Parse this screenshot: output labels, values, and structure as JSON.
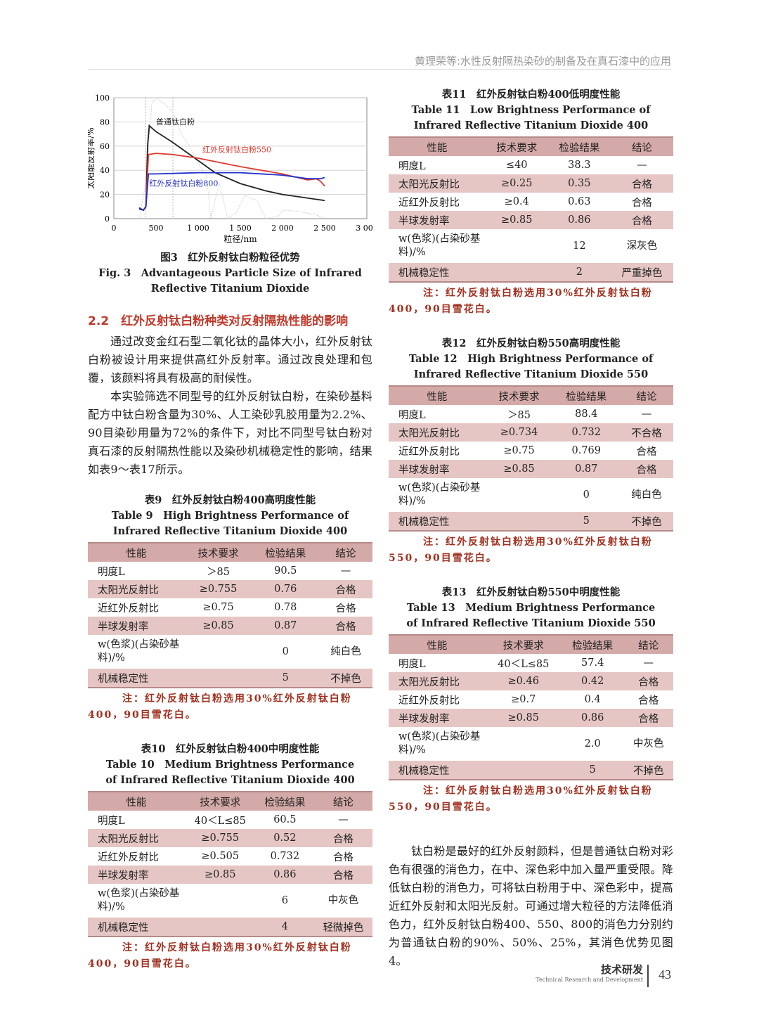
{
  "header": {
    "running_title": "黄理荣等:水性反射隔热染砂的制备及在真石漆中的应用"
  },
  "figure3": {
    "caption_cn": "图3　红外反射钛白粉粒径优势",
    "caption_en": "Fig. 3　Advantageous Particle Size of Infrared Reflective Titanium Dioxide"
  },
  "chart_data": {
    "type": "line",
    "title": "",
    "xlabel": "粒径/nm",
    "ylabel": "太阳能反射率/%",
    "xlim": [
      0,
      3000
    ],
    "ylim": [
      0,
      100
    ],
    "xticks": [
      "0",
      "500",
      "1 000",
      "1 500",
      "2 000",
      "2 500",
      "3 000"
    ],
    "xtick_values": [
      0,
      500,
      1000,
      1500,
      2000,
      2500,
      3000
    ],
    "yticks": [
      "0",
      "20",
      "40",
      "60",
      "80",
      "100"
    ],
    "ytick_values": [
      0,
      20,
      40,
      60,
      80,
      100
    ],
    "grid": true,
    "series": [
      {
        "name": "普通钛白粉",
        "color": "#222222",
        "points": [
          [
            300,
            8
          ],
          [
            350,
            7
          ],
          [
            380,
            10
          ],
          [
            400,
            60
          ],
          [
            420,
            77
          ],
          [
            450,
            75
          ],
          [
            500,
            72
          ],
          [
            700,
            63
          ],
          [
            1000,
            48
          ],
          [
            1200,
            38
          ],
          [
            1500,
            29
          ],
          [
            1800,
            23
          ],
          [
            2000,
            20
          ],
          [
            2200,
            18
          ],
          [
            2400,
            16
          ],
          [
            2500,
            15
          ]
        ]
      },
      {
        "name": "红外反射钛白粉550",
        "color": "#e03a2e",
        "points": [
          [
            300,
            9
          ],
          [
            350,
            7
          ],
          [
            380,
            10
          ],
          [
            410,
            53
          ],
          [
            500,
            54
          ],
          [
            700,
            53
          ],
          [
            1000,
            50
          ],
          [
            1500,
            43
          ],
          [
            2000,
            37
          ],
          [
            2300,
            32
          ],
          [
            2400,
            33
          ],
          [
            2450,
            31
          ],
          [
            2500,
            27
          ]
        ]
      },
      {
        "name": "红外反射钛白粉800",
        "color": "#1f2fc8",
        "points": [
          [
            300,
            9
          ],
          [
            350,
            7
          ],
          [
            380,
            10
          ],
          [
            410,
            37
          ],
          [
            500,
            37
          ],
          [
            1000,
            38
          ],
          [
            1500,
            38
          ],
          [
            2000,
            36
          ],
          [
            2300,
            33
          ],
          [
            2450,
            33
          ],
          [
            2500,
            34
          ]
        ]
      }
    ],
    "background_spectrum": {
      "color": "#c8c8c8",
      "points": [
        [
          300,
          0
        ],
        [
          380,
          30
        ],
        [
          450,
          95
        ],
        [
          500,
          100
        ],
        [
          600,
          95
        ],
        [
          700,
          88
        ],
        [
          800,
          70
        ],
        [
          900,
          60
        ],
        [
          1000,
          45
        ],
        [
          1100,
          35
        ],
        [
          1150,
          0
        ],
        [
          1250,
          30
        ],
        [
          1350,
          0
        ],
        [
          1450,
          5
        ],
        [
          1550,
          19
        ],
        [
          1700,
          15
        ],
        [
          1800,
          0
        ],
        [
          1950,
          2
        ],
        [
          2000,
          7
        ],
        [
          2200,
          6
        ],
        [
          2400,
          3
        ],
        [
          2500,
          0
        ]
      ]
    },
    "reference_lines_x": [
      380,
      700
    ]
  },
  "section": {
    "heading": "2.2　红外反射钛白粉种类对反射隔热性能的影响",
    "paragraphs": [
      "通过改变金红石型二氧化钛的晶体大小，红外反射钛白粉被设计用来提供高红外反射率。通过改良处理和包覆，该颜料将具有极高的耐候性。",
      "本实验筛选不同型号的红外反射钛白粉，在染砂基料配方中钛白粉含量为30%、人工染砂乳胶用量为2.2%、90目染砂用量为72%的条件下，对比不同型号钛白粉对真石漆的反射隔热性能以及染砂机械稳定性的影响，结果如表9～表17所示。"
    ]
  },
  "right_paragraph": "钛白粉是最好的红外反射颜料，但是普通钛白粉对彩色有很强的消色力，在中、深色彩中加入量严重受限。降低钛白粉的消色力，可将钛白粉用于中、深色彩中，提高近红外反射和太阳光反射。可通过增大粒径的方法降低消色力，红外反射钛白粉400、550、800的消色力分别约为普通钛白粉的90%、50%、25%，其消色优势见图4。",
  "table_headers": [
    "性能",
    "技术要求",
    "检验结果",
    "结论"
  ],
  "tables": [
    {
      "id": "t9",
      "title_cn": "表9　红外反射钛白粉400高明度性能",
      "title_en": "Table 9　High Brightness Performance of Infrared Reflective Titanium Dioxide 400",
      "rows": [
        [
          "明度L",
          "＞85",
          "90.5",
          "—"
        ],
        [
          "太阳光反射比",
          "≥0.755",
          "0.76",
          "合格"
        ],
        [
          "近红外反射比",
          "≥0.75",
          "0.78",
          "合格"
        ],
        [
          "半球发射率",
          "≥0.85",
          "0.87",
          "合格"
        ],
        [
          "w(色浆)(占染砂基料)/%",
          "",
          "0",
          "纯白色"
        ],
        [
          "机械稳定性",
          "",
          "5",
          "不掉色"
        ]
      ],
      "note": "注：红外反射钛白粉选用30%红外反射钛白粉400，90目雪花白。"
    },
    {
      "id": "t10",
      "title_cn": "表10　红外反射钛白粉400中明度性能",
      "title_en": "Table 10　Medium Brightness Performance of Infrared Reflective Titanium Dioxide 400",
      "rows": [
        [
          "明度L",
          "40＜L≤85",
          "60.5",
          "—"
        ],
        [
          "太阳光反射比",
          "≥0.755",
          "0.52",
          "合格"
        ],
        [
          "近红外反射比",
          "≥0.505",
          "0.732",
          "合格"
        ],
        [
          "半球发射率",
          "≥0.85",
          "0.86",
          "合格"
        ],
        [
          "w(色浆)(占染砂基料)/%",
          "",
          "6",
          "中灰色"
        ],
        [
          "机械稳定性",
          "",
          "4",
          "轻微掉色"
        ]
      ],
      "note": "注：红外反射钛白粉选用30%红外反射钛白粉400，90目雪花白。"
    },
    {
      "id": "t11",
      "title_cn": "表11　红外反射钛白粉400低明度性能",
      "title_en": "Table 11　Low Brightness Performance of Infrared Reflective Titanium Dioxide 400",
      "rows": [
        [
          "明度L",
          "≤40",
          "38.3",
          "—"
        ],
        [
          "太阳光反射比",
          "≥0.25",
          "0.35",
          "合格"
        ],
        [
          "近红外反射比",
          "≥0.4",
          "0.63",
          "合格"
        ],
        [
          "半球发射率",
          "≥0.85",
          "0.86",
          "合格"
        ],
        [
          "w(色浆)(占染砂基料)/%",
          "",
          "12",
          "深灰色"
        ],
        [
          "机械稳定性",
          "",
          "2",
          "严重掉色"
        ]
      ],
      "note": "注：红外反射钛白粉选用30%红外反射钛白粉400，90目雪花白。"
    },
    {
      "id": "t12",
      "title_cn": "表12　红外反射钛白粉550高明度性能",
      "title_en": "Table 12　High Brightness Performance of Infrared Reflective Titanium Dioxide 550",
      "rows": [
        [
          "明度L",
          "＞85",
          "88.4",
          "—"
        ],
        [
          "太阳光反射比",
          "≥0.734",
          "0.732",
          "不合格"
        ],
        [
          "近红外反射比",
          "≥0.75",
          "0.769",
          "合格"
        ],
        [
          "半球发射率",
          "≥0.85",
          "0.87",
          "合格"
        ],
        [
          "w(色浆)(占染砂基料)/%",
          "",
          "0",
          "纯白色"
        ],
        [
          "机械稳定性",
          "",
          "5",
          "不掉色"
        ]
      ],
      "note": "注：红外反射钛白粉选用30%红外反射钛白粉550，90目雪花白。"
    },
    {
      "id": "t13",
      "title_cn": "表13　红外反射钛白粉550中明度性能",
      "title_en": "Table 13　Medium Brightness Performance of Infrared Reflective Titanium Dioxide 550",
      "rows": [
        [
          "明度L",
          "40＜L≤85",
          "57.4",
          "—"
        ],
        [
          "太阳光反射比",
          "≥0.46",
          "0.42",
          "合格"
        ],
        [
          "近红外反射比",
          "≥0.7",
          "0.4",
          "合格"
        ],
        [
          "半球发射率",
          "≥0.85",
          "0.86",
          "合格"
        ],
        [
          "w(色浆)(占染砂基料)/%",
          "",
          "2.0",
          "中灰色"
        ],
        [
          "机械稳定性",
          "",
          "5",
          "不掉色"
        ]
      ],
      "note": "注：红外反射钛白粉选用30%红外反射钛白粉550，90目雪花白。"
    }
  ],
  "footer": {
    "section_cn": "技术研发",
    "section_en": "Technical Research and Development",
    "page_number": "43"
  }
}
